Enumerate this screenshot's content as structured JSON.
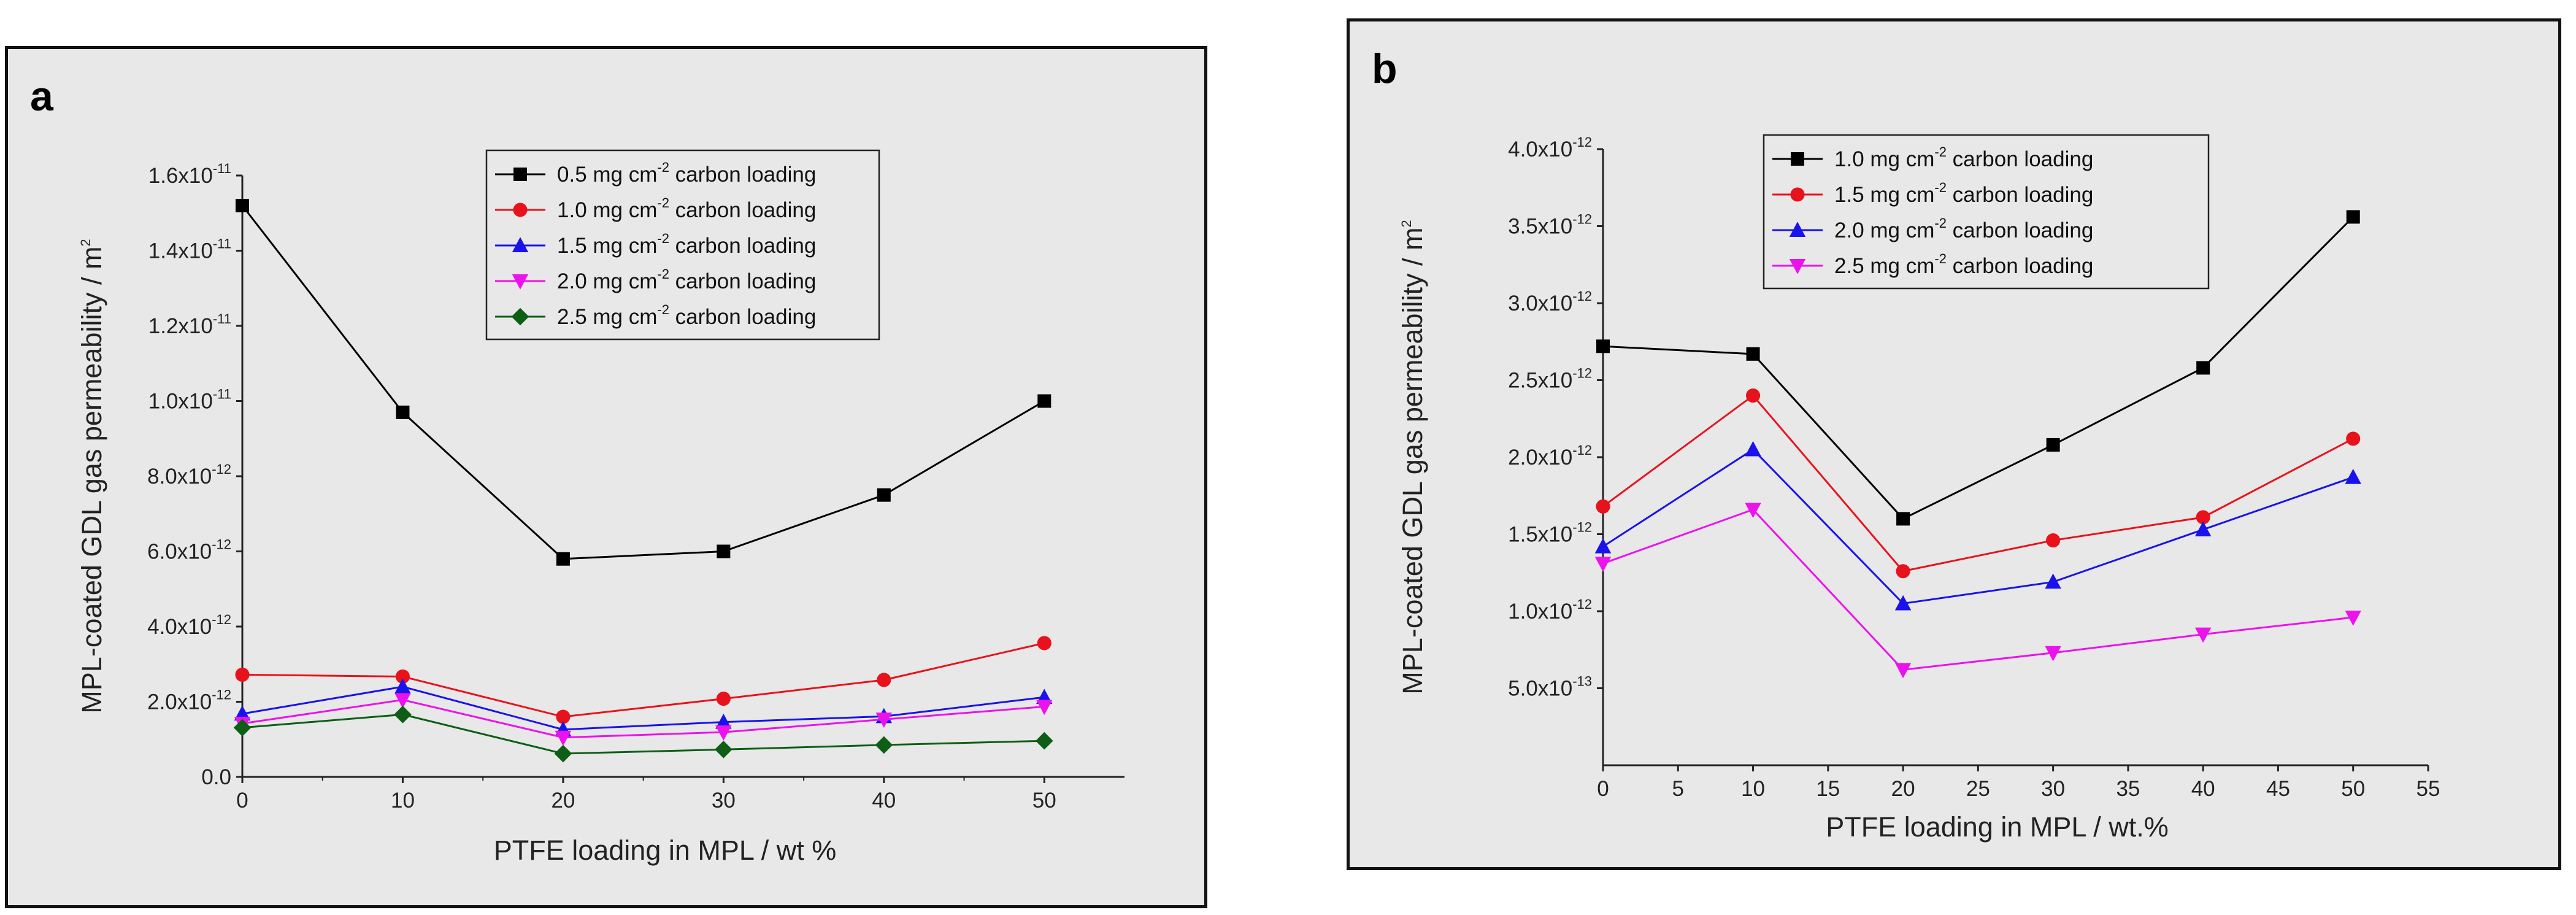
{
  "chart_data": [
    {
      "type": "line",
      "panel_label": "a",
      "xlabel": "PTFE loading in MPL / wt %",
      "ylabel": "MPL-coated GDL gas permeability / m",
      "ylabel_sup": "2",
      "xlim": [
        0,
        55
      ],
      "ylim": [
        0,
        1.6e-11
      ],
      "x_ticks": [
        0,
        10,
        20,
        30,
        40,
        50
      ],
      "y_ticks": [
        {
          "value": 0,
          "mant": "0.0",
          "exp": ""
        },
        {
          "value": 2e-12,
          "mant": "2.0x10",
          "exp": "-12"
        },
        {
          "value": 4e-12,
          "mant": "4.0x10",
          "exp": "-12"
        },
        {
          "value": 6e-12,
          "mant": "6.0x10",
          "exp": "-12"
        },
        {
          "value": 8e-12,
          "mant": "8.0x10",
          "exp": "-12"
        },
        {
          "value": 1e-11,
          "mant": "1.0x10",
          "exp": "-11"
        },
        {
          "value": 1.2e-11,
          "mant": "1.2x10",
          "exp": "-11"
        },
        {
          "value": 1.4e-11,
          "mant": "1.4x10",
          "exp": "-11"
        },
        {
          "value": 1.6e-11,
          "mant": "1.6x10",
          "exp": "-11"
        }
      ],
      "legend_position": "top-center",
      "series": [
        {
          "name_pre": "0.5 mg cm",
          "name_sup": "-2",
          "name_post": " carbon loading",
          "color": "#000000",
          "marker": "square",
          "x": [
            0,
            10,
            20,
            30,
            40,
            50
          ],
          "values": [
            1.52e-11,
            9.7e-12,
            5.8e-12,
            6e-12,
            7.5e-12,
            1e-11
          ]
        },
        {
          "name_pre": "1.0 mg cm",
          "name_sup": "-2",
          "name_post": " carbon loading",
          "color": "#e8121c",
          "marker": "circle",
          "x": [
            0,
            10,
            20,
            30,
            40,
            50
          ],
          "values": [
            2.72e-12,
            2.67e-12,
            1.6e-12,
            2.08e-12,
            2.58e-12,
            3.56e-12
          ]
        },
        {
          "name_pre": "1.5 mg cm",
          "name_sup": "-2",
          "name_post": " carbon loading",
          "color": "#1a12ec",
          "marker": "triangle-up",
          "x": [
            0,
            10,
            20,
            30,
            40,
            50
          ],
          "values": [
            1.68e-12,
            2.4e-12,
            1.26e-12,
            1.46e-12,
            1.61e-12,
            2.12e-12
          ]
        },
        {
          "name_pre": "2.0 mg cm",
          "name_sup": "-2",
          "name_post": " carbon loading",
          "color": "#ec12ec",
          "marker": "triangle-down",
          "x": [
            0,
            10,
            20,
            30,
            40,
            50
          ],
          "values": [
            1.42e-12,
            2.05e-12,
            1.05e-12,
            1.19e-12,
            1.53e-12,
            1.87e-12
          ]
        },
        {
          "name_pre": "2.5 mg cm",
          "name_sup": "-2",
          "name_post": " carbon loading",
          "color": "#0e5e16",
          "marker": "diamond",
          "x": [
            0,
            10,
            20,
            30,
            40,
            50
          ],
          "values": [
            1.31e-12,
            1.66e-12,
            6.2e-13,
            7.3e-13,
            8.5e-13,
            9.6e-13
          ]
        }
      ]
    },
    {
      "type": "line",
      "panel_label": "b",
      "xlabel": "PTFE loading in MPL / wt.%",
      "ylabel": "MPL-coated GDL gas permeability / m",
      "ylabel_sup": "2",
      "xlim": [
        0,
        55
      ],
      "ylim": [
        0,
        4e-12
      ],
      "x_ticks": [
        0,
        5,
        10,
        15,
        20,
        25,
        30,
        35,
        40,
        45,
        50,
        55
      ],
      "y_ticks": [
        {
          "value": 5e-13,
          "mant": "5.0x10",
          "exp": "-13"
        },
        {
          "value": 1e-12,
          "mant": "1.0x10",
          "exp": "-12"
        },
        {
          "value": 1.5e-12,
          "mant": "1.5x10",
          "exp": "-12"
        },
        {
          "value": 2e-12,
          "mant": "2.0x10",
          "exp": "-12"
        },
        {
          "value": 2.5e-12,
          "mant": "2.5x10",
          "exp": "-12"
        },
        {
          "value": 3e-12,
          "mant": "3.0x10",
          "exp": "-12"
        },
        {
          "value": 3.5e-12,
          "mant": "3.5x10",
          "exp": "-12"
        },
        {
          "value": 4e-12,
          "mant": "4.0x10",
          "exp": "-12"
        }
      ],
      "legend_position": "top-center",
      "series": [
        {
          "name_pre": "1.0 mg cm",
          "name_sup": "-2",
          "name_post": " carbon loading",
          "color": "#000000",
          "marker": "square",
          "x": [
            0,
            10,
            20,
            30,
            40,
            50
          ],
          "values": [
            2.72e-12,
            2.67e-12,
            1.6e-12,
            2.08e-12,
            2.58e-12,
            3.56e-12
          ]
        },
        {
          "name_pre": "1.5 mg cm",
          "name_sup": "-2",
          "name_post": " carbon loading",
          "color": "#e8121c",
          "marker": "circle",
          "x": [
            0,
            10,
            20,
            30,
            40,
            50
          ],
          "values": [
            1.68e-12,
            2.4e-12,
            1.26e-12,
            1.46e-12,
            1.61e-12,
            2.12e-12
          ]
        },
        {
          "name_pre": "2.0 mg cm",
          "name_sup": "-2",
          "name_post": " carbon loading",
          "color": "#1a12ec",
          "marker": "triangle-up",
          "x": [
            0,
            10,
            20,
            30,
            40,
            50
          ],
          "values": [
            1.42e-12,
            2.05e-12,
            1.05e-12,
            1.19e-12,
            1.53e-12,
            1.87e-12
          ]
        },
        {
          "name_pre": "2.5 mg cm",
          "name_sup": "-2",
          "name_post": " carbon loading",
          "color": "#ec12ec",
          "marker": "triangle-down",
          "x": [
            0,
            10,
            20,
            30,
            40,
            50
          ],
          "values": [
            1.31e-12,
            1.66e-12,
            6.2e-13,
            7.3e-13,
            8.5e-13,
            9.6e-13
          ]
        }
      ]
    }
  ]
}
